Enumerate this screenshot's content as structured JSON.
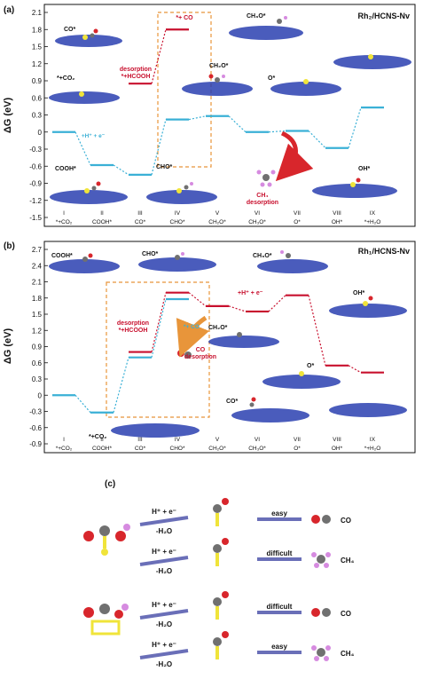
{
  "colors": {
    "blue_level": "#3ab0d6",
    "red_level": "#c8102e",
    "dashed_box": "#e8953a",
    "arrow_blue": "#6a6fb8",
    "atom_c": "#707070",
    "atom_o": "#d8262c",
    "atom_h": "#d68be0",
    "atom_rh": "#f0e43a",
    "atom_n": "#2a3fb0"
  },
  "chart_data": [
    {
      "type": "line",
      "panel_label": "(a)",
      "title": "Rh₂/HCNS-Nv",
      "ylabel": "ΔG (eV)",
      "ylim": [
        -1.5,
        2.1
      ],
      "yticks": [
        "2.1",
        "1.8",
        "1.5",
        "1.2",
        "0.9",
        "0.6",
        "0.3",
        "0",
        "-0.3",
        "-0.6",
        "-0.9",
        "-1.2",
        "-1.5"
      ],
      "xticks_top": [
        "I",
        "II",
        "III",
        "IV",
        "V",
        "VI",
        "VII",
        "VIII",
        "IX"
      ],
      "xticks_bottom": [
        "*+CO₂",
        "COOH*",
        "CO*",
        "CHO*",
        "CH₂O*",
        "CH₃O*",
        "O*",
        "OH*",
        "*+H₂O"
      ],
      "series": [
        {
          "name": "",
          "color": "blue",
          "x": [
            1,
            2,
            3,
            4,
            5,
            6,
            7,
            8,
            9
          ],
          "values": [
            0,
            -0.58,
            -0.75,
            0.22,
            0.28,
            0.0,
            0.02,
            -0.28,
            0.43
          ]
        },
        {
          "name": "",
          "color": "red",
          "x": [
            3,
            4
          ],
          "values": [
            0.85,
            1.8
          ]
        }
      ],
      "annotations": [
        {
          "text": "*+CO₂",
          "kind": "plain"
        },
        {
          "text": "desorption",
          "kind": "red"
        },
        {
          "text": "*+HCOOH",
          "kind": "red"
        },
        {
          "text": "*+ CO",
          "kind": "red"
        },
        {
          "text": "CO*",
          "kind": "plain"
        },
        {
          "text": "CH₃O*",
          "kind": "plain"
        },
        {
          "text": "CH₂O*",
          "kind": "plain"
        },
        {
          "text": "O*",
          "kind": "plain"
        },
        {
          "text": "COOH*",
          "kind": "plain"
        },
        {
          "text": "CHO*",
          "kind": "plain"
        },
        {
          "text": "OH*",
          "kind": "plain"
        },
        {
          "text": "CH₄",
          "kind": "red"
        },
        {
          "text": "desorption",
          "kind": "red"
        },
        {
          "text": "+H⁺ + e⁻",
          "kind": "blue"
        }
      ]
    },
    {
      "type": "line",
      "panel_label": "(b)",
      "title": "Rh₁/HCNS-Nv",
      "ylabel": "ΔG (eV)",
      "ylim": [
        -0.9,
        2.7
      ],
      "yticks": [
        "2.7",
        "2.4",
        "2.1",
        "1.8",
        "1.5",
        "1.2",
        "0.9",
        "0.6",
        "0.3",
        "0",
        "-0.3",
        "-0.6",
        "-0.9"
      ],
      "xticks_top": [
        "I",
        "II",
        "III",
        "IV",
        "V",
        "VI",
        "VII",
        "VIII",
        "IX"
      ],
      "xticks_bottom": [
        "*+CO₂",
        "COOH*",
        "CO*",
        "CHO*",
        "CH₂O*",
        "CH₃O*",
        "O*",
        "OH*",
        "*+H₂O"
      ],
      "series": [
        {
          "name": "",
          "color": "blue",
          "x": [
            1,
            2,
            3,
            4
          ],
          "values": [
            0,
            -0.32,
            0.7,
            1.78
          ]
        },
        {
          "name": "",
          "color": "red",
          "x": [
            3,
            4,
            5,
            6,
            7,
            8,
            9
          ],
          "values": [
            0.8,
            1.9,
            1.65,
            1.55,
            1.85,
            0.55,
            0.42
          ]
        }
      ],
      "annotations": [
        {
          "text": "COOH*",
          "kind": "plain"
        },
        {
          "text": "CHO*",
          "kind": "plain"
        },
        {
          "text": "CH₃O*",
          "kind": "plain"
        },
        {
          "text": "desorption",
          "kind": "red"
        },
        {
          "text": "*+HCOOH",
          "kind": "red"
        },
        {
          "text": "*+ CO",
          "kind": "blue"
        },
        {
          "text": "CO",
          "kind": "red"
        },
        {
          "text": "desorption",
          "kind": "red"
        },
        {
          "text": "CH₂O*",
          "kind": "plain"
        },
        {
          "text": "OH*",
          "kind": "plain"
        },
        {
          "text": "O*",
          "kind": "plain"
        },
        {
          "text": "CO*",
          "kind": "plain"
        },
        {
          "text": "*+CO₂",
          "kind": "plain"
        },
        {
          "text": "+H⁺ + e⁻",
          "kind": "red"
        }
      ]
    }
  ],
  "panel_c": {
    "label": "(c)",
    "step_line1": "H⁺ + e⁻",
    "step_line2": "-H₂O",
    "rows": [
      {
        "word": "easy",
        "product": "CO"
      },
      {
        "word": "difficult",
        "product": "CH₄"
      },
      {
        "word": "difficult",
        "product": "CO"
      },
      {
        "word": "easy",
        "product": "CH₄"
      }
    ]
  }
}
